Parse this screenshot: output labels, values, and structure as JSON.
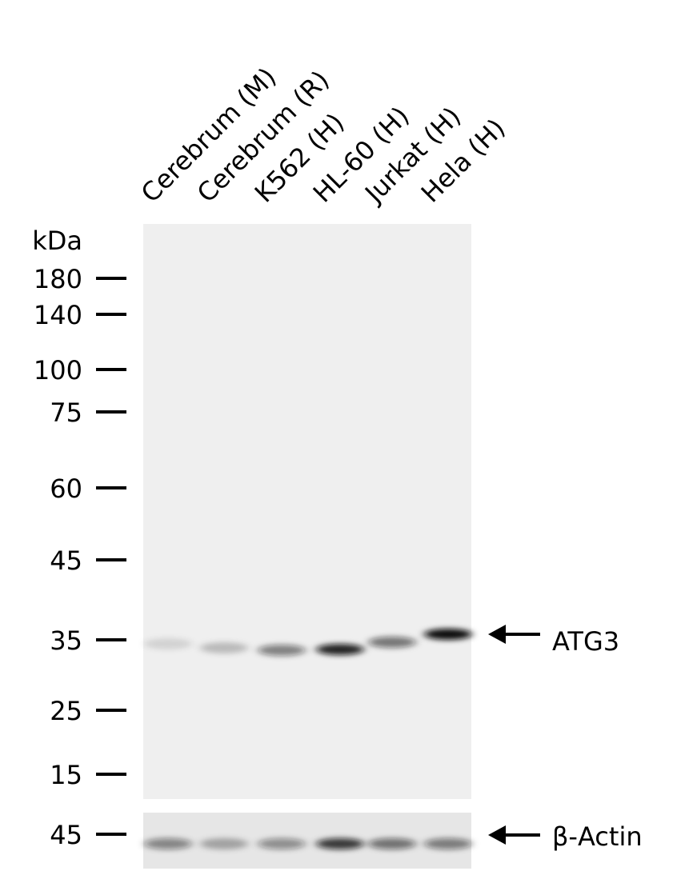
{
  "lanes": [
    {
      "label": "Cerebrum (M)",
      "atg3_intensity": 0.12,
      "actin_intensity": 0.55
    },
    {
      "label": "Cerebrum (R)",
      "atg3_intensity": 0.22,
      "actin_intensity": 0.35
    },
    {
      "label": "K562 (H)",
      "atg3_intensity": 0.5,
      "actin_intensity": 0.5
    },
    {
      "label": "HL-60 (H)",
      "atg3_intensity": 0.9,
      "actin_intensity": 0.95
    },
    {
      "label": "Jurkat (H)",
      "atg3_intensity": 0.55,
      "actin_intensity": 0.65
    },
    {
      "label": "Hela (H)",
      "atg3_intensity": 1.0,
      "actin_intensity": 0.6
    }
  ],
  "marker_unit": "kDa",
  "markers": [
    "180",
    "140",
    "100",
    "75",
    "60",
    "45",
    "35",
    "25",
    "15"
  ],
  "actin_marker": "45",
  "targets": {
    "atg3": "ATG3",
    "actin": "β-Actin"
  },
  "colors": {
    "membrane": "#efefef",
    "band": "#111111"
  }
}
